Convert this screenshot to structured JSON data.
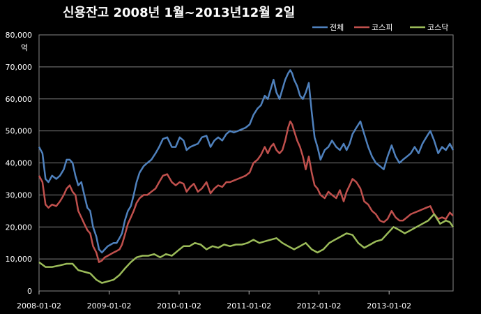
{
  "chart_data": {
    "type": "line",
    "title": "신용잔고 2008년 1월~2013년12월 2일",
    "ylabel": "억",
    "xlabel": "",
    "ylim": [
      0,
      80000
    ],
    "yticks": [
      "80,000",
      "70,000",
      "60,000",
      "50,000",
      "40,000",
      "30,000",
      "20,000",
      "10,000",
      "0"
    ],
    "xlim": [
      "2008-01-02",
      "2013-12-02"
    ],
    "xticks": [
      "2008-01-02",
      "2009-01-02",
      "2010-01-02",
      "2011-01-02",
      "2012-01-02",
      "2013-01-02"
    ],
    "grid": true,
    "legend": "top-right",
    "colors": {
      "background": "#000000",
      "grid": "#7f7f7f",
      "text": "#ffffff"
    },
    "series": [
      {
        "name": "전체",
        "color": "#4f81bd",
        "x": [
          "2008-01-02",
          "2008-01-20",
          "2008-02-05",
          "2008-02-20",
          "2008-03-10",
          "2008-04-01",
          "2008-04-20",
          "2008-05-10",
          "2008-05-25",
          "2008-06-10",
          "2008-06-25",
          "2008-07-10",
          "2008-07-25",
          "2008-08-10",
          "2008-08-25",
          "2008-09-10",
          "2008-09-25",
          "2008-10-10",
          "2008-10-27",
          "2008-11-10",
          "2008-11-25",
          "2008-12-10",
          "2008-12-26",
          "2009-01-10",
          "2009-01-25",
          "2009-02-10",
          "2009-02-25",
          "2009-03-10",
          "2009-03-25",
          "2009-04-10",
          "2009-04-25",
          "2009-05-10",
          "2009-05-25",
          "2009-06-10",
          "2009-07-01",
          "2009-07-20",
          "2009-08-10",
          "2009-09-01",
          "2009-09-20",
          "2009-10-10",
          "2009-11-01",
          "2009-11-25",
          "2009-12-15",
          "2010-01-05",
          "2010-01-25",
          "2010-02-10",
          "2010-03-01",
          "2010-03-20",
          "2010-04-10",
          "2010-05-01",
          "2010-05-25",
          "2010-06-15",
          "2010-07-05",
          "2010-07-25",
          "2010-08-15",
          "2010-09-05",
          "2010-09-25",
          "2010-10-15",
          "2010-11-05",
          "2010-11-25",
          "2010-12-15",
          "2011-01-05",
          "2011-01-25",
          "2011-02-15",
          "2011-03-05",
          "2011-03-25",
          "2011-04-10",
          "2011-04-25",
          "2011-05-10",
          "2011-05-25",
          "2011-06-10",
          "2011-06-25",
          "2011-07-10",
          "2011-07-25",
          "2011-08-05",
          "2011-08-15",
          "2011-08-25",
          "2011-09-10",
          "2011-09-25",
          "2011-10-10",
          "2011-10-25",
          "2011-11-10",
          "2011-11-25",
          "2011-12-10",
          "2011-12-25",
          "2012-01-10",
          "2012-02-01",
          "2012-02-20",
          "2012-03-10",
          "2012-04-01",
          "2012-04-20",
          "2012-05-10",
          "2012-05-25",
          "2012-06-10",
          "2012-06-25",
          "2012-07-15",
          "2012-08-05",
          "2012-08-25",
          "2012-09-15",
          "2012-10-05",
          "2012-10-25",
          "2012-11-15",
          "2012-12-05",
          "2012-12-25",
          "2013-01-15",
          "2013-02-05",
          "2013-02-25",
          "2013-03-15",
          "2013-04-05",
          "2013-04-25",
          "2013-05-15",
          "2013-06-05",
          "2013-06-25",
          "2013-07-15",
          "2013-08-05",
          "2013-08-25",
          "2013-09-15",
          "2013-10-05",
          "2013-10-25",
          "2013-11-15",
          "2013-12-02"
        ],
        "y": [
          45000,
          43000,
          35000,
          34000,
          36000,
          35000,
          36000,
          38000,
          41000,
          41000,
          40000,
          36000,
          33000,
          34000,
          30000,
          26000,
          25000,
          20000,
          17000,
          13000,
          12000,
          13000,
          14000,
          14500,
          15000,
          15000,
          16500,
          18000,
          22000,
          25000,
          26500,
          30000,
          34000,
          37000,
          39000,
          40000,
          41000,
          43000,
          45000,
          47500,
          48000,
          45000,
          45000,
          48000,
          47000,
          44000,
          45000,
          45500,
          46000,
          48000,
          48500,
          45000,
          47000,
          48000,
          47000,
          49000,
          50000,
          49500,
          50000,
          50500,
          51000,
          52000,
          55000,
          57000,
          58000,
          61000,
          60000,
          63000,
          66000,
          62000,
          60000,
          63000,
          66000,
          68000,
          69000,
          68000,
          66000,
          64000,
          61000,
          60000,
          62000,
          65000,
          56000,
          48000,
          45000,
          41000,
          44000,
          45000,
          47000,
          45000,
          44000,
          46000,
          44000,
          46000,
          49000,
          51000,
          53000,
          49000,
          45000,
          42000,
          40000,
          39000,
          38000,
          42000,
          45500,
          42000,
          40000,
          41000,
          42000,
          43000,
          45000,
          43000,
          46000,
          48000,
          50000,
          47000,
          43000,
          45000,
          44000,
          46000,
          44000
        ]
      },
      {
        "name": "코스피",
        "color": "#c0504d",
        "x": [
          "2008-01-02",
          "2008-01-20",
          "2008-02-05",
          "2008-02-20",
          "2008-03-10",
          "2008-04-01",
          "2008-04-20",
          "2008-05-10",
          "2008-05-25",
          "2008-06-10",
          "2008-06-25",
          "2008-07-10",
          "2008-07-25",
          "2008-08-10",
          "2008-08-25",
          "2008-09-10",
          "2008-09-25",
          "2008-10-10",
          "2008-10-27",
          "2008-11-10",
          "2008-11-25",
          "2008-12-10",
          "2008-12-26",
          "2009-01-10",
          "2009-01-25",
          "2009-02-10",
          "2009-02-25",
          "2009-03-10",
          "2009-03-25",
          "2009-04-10",
          "2009-04-25",
          "2009-05-10",
          "2009-05-25",
          "2009-06-10",
          "2009-07-01",
          "2009-07-20",
          "2009-08-10",
          "2009-09-01",
          "2009-09-20",
          "2009-10-10",
          "2009-11-01",
          "2009-11-25",
          "2009-12-15",
          "2010-01-05",
          "2010-01-25",
          "2010-02-10",
          "2010-03-01",
          "2010-03-20",
          "2010-04-10",
          "2010-05-01",
          "2010-05-25",
          "2010-06-15",
          "2010-07-05",
          "2010-07-25",
          "2010-08-15",
          "2010-09-05",
          "2010-09-25",
          "2010-10-15",
          "2010-11-05",
          "2010-11-25",
          "2010-12-15",
          "2011-01-05",
          "2011-01-25",
          "2011-02-15",
          "2011-03-05",
          "2011-03-25",
          "2011-04-10",
          "2011-04-25",
          "2011-05-10",
          "2011-05-25",
          "2011-06-10",
          "2011-06-25",
          "2011-07-10",
          "2011-07-25",
          "2011-08-05",
          "2011-08-15",
          "2011-08-25",
          "2011-09-10",
          "2011-09-25",
          "2011-10-10",
          "2011-10-25",
          "2011-11-10",
          "2011-11-25",
          "2011-12-10",
          "2011-12-25",
          "2012-01-10",
          "2012-02-01",
          "2012-02-20",
          "2012-03-10",
          "2012-04-01",
          "2012-04-20",
          "2012-05-10",
          "2012-05-25",
          "2012-06-10",
          "2012-06-25",
          "2012-07-15",
          "2012-08-05",
          "2012-08-25",
          "2012-09-15",
          "2012-10-05",
          "2012-10-25",
          "2012-11-15",
          "2012-12-05",
          "2012-12-25",
          "2013-01-15",
          "2013-02-05",
          "2013-02-25",
          "2013-03-15",
          "2013-04-05",
          "2013-04-25",
          "2013-05-15",
          "2013-06-05",
          "2013-06-25",
          "2013-07-15",
          "2013-08-05",
          "2013-08-25",
          "2013-09-15",
          "2013-10-05",
          "2013-10-25",
          "2013-11-15",
          "2013-12-02"
        ],
        "y": [
          36000,
          34000,
          27000,
          26000,
          27000,
          26500,
          28000,
          30000,
          32000,
          33000,
          31000,
          30000,
          25000,
          23000,
          21000,
          19000,
          18000,
          14000,
          12000,
          9000,
          9500,
          10500,
          11000,
          11500,
          12000,
          12500,
          13000,
          14500,
          17500,
          21000,
          23000,
          25000,
          27500,
          29000,
          30000,
          30000,
          31000,
          32000,
          34000,
          36000,
          36500,
          34000,
          33000,
          34000,
          33500,
          31000,
          32500,
          33500,
          31000,
          32000,
          34000,
          30500,
          32000,
          33000,
          32500,
          34000,
          34000,
          34500,
          35000,
          35500,
          36000,
          37000,
          40000,
          41000,
          42500,
          45000,
          43000,
          45000,
          46000,
          44000,
          43000,
          44000,
          47000,
          51000,
          53000,
          52000,
          50000,
          47000,
          45000,
          42000,
          38000,
          42000,
          37000,
          33000,
          32000,
          30000,
          29000,
          31000,
          30000,
          29000,
          31500,
          28000,
          31000,
          33000,
          35000,
          34000,
          32000,
          28000,
          27000,
          25000,
          24000,
          22000,
          21500,
          22500,
          25000,
          23000,
          22000,
          22000,
          23000,
          24000,
          24500,
          25000,
          25500,
          26000,
          26500,
          24000,
          22500,
          23000,
          22500,
          24500,
          23500
        ]
      },
      {
        "name": "코스닥",
        "color": "#9bbb59",
        "x": [
          "2008-01-02",
          "2008-02-05",
          "2008-03-10",
          "2008-04-20",
          "2008-05-25",
          "2008-06-25",
          "2008-07-25",
          "2008-08-25",
          "2008-09-25",
          "2008-10-27",
          "2008-11-25",
          "2008-12-26",
          "2009-01-25",
          "2009-02-25",
          "2009-03-25",
          "2009-04-25",
          "2009-05-25",
          "2009-06-25",
          "2009-07-25",
          "2009-08-25",
          "2009-09-25",
          "2009-10-25",
          "2009-11-25",
          "2009-12-25",
          "2010-01-25",
          "2010-02-25",
          "2010-03-25",
          "2010-04-25",
          "2010-05-25",
          "2010-06-25",
          "2010-07-25",
          "2010-08-25",
          "2010-09-25",
          "2010-10-25",
          "2010-11-25",
          "2010-12-25",
          "2011-01-25",
          "2011-02-25",
          "2011-03-25",
          "2011-04-25",
          "2011-05-25",
          "2011-06-25",
          "2011-07-25",
          "2011-08-25",
          "2011-09-25",
          "2011-10-25",
          "2011-11-25",
          "2011-12-25",
          "2012-01-25",
          "2012-02-25",
          "2012-03-25",
          "2012-04-25",
          "2012-05-25",
          "2012-06-25",
          "2012-07-25",
          "2012-08-25",
          "2012-09-25",
          "2012-10-25",
          "2012-11-25",
          "2012-12-25",
          "2013-01-25",
          "2013-02-25",
          "2013-03-25",
          "2013-04-25",
          "2013-05-25",
          "2013-06-25",
          "2013-07-25",
          "2013-08-25",
          "2013-09-25",
          "2013-10-25",
          "2013-11-15",
          "2013-12-02"
        ],
        "y": [
          9000,
          7500,
          7500,
          8000,
          8500,
          8500,
          6500,
          6000,
          5500,
          3500,
          2500,
          3000,
          3500,
          5000,
          7000,
          9000,
          10500,
          11000,
          11000,
          11500,
          10500,
          11500,
          11000,
          12500,
          14000,
          14000,
          15000,
          14500,
          13000,
          14000,
          13500,
          14500,
          14000,
          14500,
          14500,
          15000,
          16000,
          15000,
          15500,
          16000,
          16500,
          15000,
          14000,
          13000,
          14000,
          15000,
          13000,
          12000,
          13000,
          15000,
          16000,
          17000,
          18000,
          17500,
          15000,
          13500,
          14500,
          15500,
          16000,
          18000,
          20000,
          19000,
          18000,
          19000,
          20000,
          21000,
          22000,
          24000,
          21000,
          22000,
          21500,
          20000
        ]
      }
    ]
  }
}
